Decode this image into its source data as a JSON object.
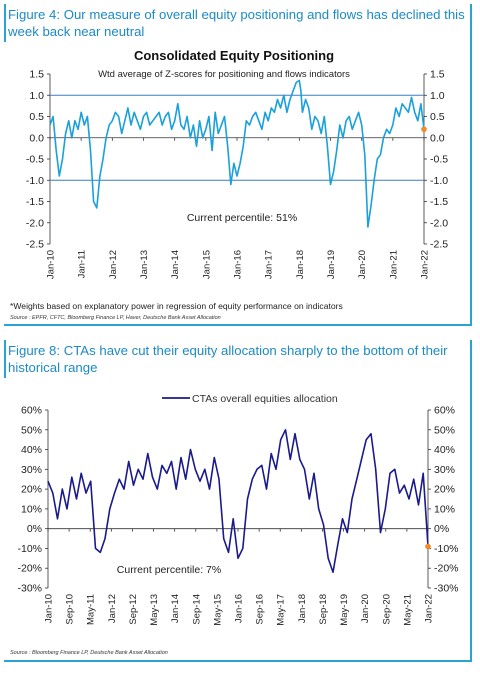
{
  "figure1": {
    "title": "Figure 4: Our measure of overall equity positioning and flows has declined this week back near neutral",
    "chart_title": "Consolidated Equity Positioning",
    "chart_subtitle": "Wtd average of Z-scores for positioning and flows indicators",
    "annotation": "Current percentile: 51%",
    "footnote": "*Weights based on explanatory power in regression of equity performance on indicators",
    "source": "Source : EPFR, CFTC, Bloomberg Finance LP, Haver, Deutsche Bank Asset Allocation"
  },
  "figure2": {
    "title": "Figure 8: CTAs have cut their equity allocation sharply to the bottom of their historical range",
    "legend": "CTAs overall equities allocation",
    "annotation": "Current percentile: 7%",
    "source": "Source : Bloomberg Finance LP, Deutsche Bank Asset Allocation"
  },
  "colors": {
    "series1": "#1aa0dc",
    "series2": "#1a1a8c",
    "marker": "#f08a2a",
    "reference": "#3a7fc0",
    "title": "#1c8ac4"
  },
  "chart_data": [
    {
      "type": "line",
      "title": "Consolidated Equity Positioning",
      "subtitle": "Wtd average of Z-scores for positioning and flows indicators",
      "x_ticks": [
        "Jan-10",
        "Jan-11",
        "Jan-12",
        "Jan-13",
        "Jan-14",
        "Jan-15",
        "Jan-16",
        "Jan-17",
        "Jan-18",
        "Jan-19",
        "Jan-20",
        "Jan-21",
        "Jan-22"
      ],
      "y_ticks": [
        "1.5",
        "1.0",
        "0.5",
        "0.0",
        "-0.5",
        "-1.0",
        "-1.5",
        "-2.0",
        "-2.5"
      ],
      "ylim": [
        -2.5,
        1.5
      ],
      "reference_lines": [
        1.0,
        -1.0
      ],
      "series": [
        {
          "x": [
            2010.0,
            2010.1,
            2010.2,
            2010.3,
            2010.4,
            2010.5,
            2010.6,
            2010.7,
            2010.8,
            2010.9,
            2011.0,
            2011.1,
            2011.2,
            2011.3,
            2011.4,
            2011.5,
            2011.6,
            2011.7,
            2011.8,
            2011.9,
            2012.0,
            2012.1,
            2012.2,
            2012.3,
            2012.4,
            2012.5,
            2012.6,
            2012.7,
            2012.8,
            2012.9,
            2013.0,
            2013.1,
            2013.2,
            2013.3,
            2013.4,
            2013.5,
            2013.6,
            2013.7,
            2013.8,
            2013.9,
            2014.0,
            2014.1,
            2014.2,
            2014.3,
            2014.4,
            2014.5,
            2014.6,
            2014.7,
            2014.8,
            2014.9,
            2015.0,
            2015.1,
            2015.2,
            2015.3,
            2015.4,
            2015.5,
            2015.6,
            2015.7,
            2015.8,
            2015.9,
            2016.0,
            2016.1,
            2016.2,
            2016.3,
            2016.4,
            2016.5,
            2016.6,
            2016.7,
            2016.8,
            2016.9,
            2017.0,
            2017.1,
            2017.2,
            2017.3,
            2017.4,
            2017.5,
            2017.6,
            2017.7,
            2017.8,
            2017.9,
            2018.0,
            2018.05,
            2018.1,
            2018.2,
            2018.3,
            2018.4,
            2018.5,
            2018.6,
            2018.7,
            2018.8,
            2018.9,
            2019.0,
            2019.1,
            2019.2,
            2019.3,
            2019.4,
            2019.5,
            2019.6,
            2019.7,
            2019.8,
            2019.9,
            2020.0,
            2020.1,
            2020.2,
            2020.3,
            2020.4,
            2020.5,
            2020.6,
            2020.7,
            2020.8,
            2020.9,
            2021.0,
            2021.1,
            2021.2,
            2021.3,
            2021.4,
            2021.5,
            2021.6,
            2021.7,
            2021.8,
            2021.9,
            2022.0
          ],
          "values": [
            0.3,
            0.5,
            -0.3,
            -0.9,
            -0.5,
            0.1,
            0.4,
            0.0,
            0.4,
            0.2,
            0.6,
            0.3,
            0.5,
            -0.3,
            -1.5,
            -1.65,
            -0.9,
            -0.5,
            0.0,
            0.3,
            0.4,
            0.6,
            0.5,
            0.1,
            0.4,
            0.7,
            0.3,
            0.6,
            0.4,
            0.2,
            0.5,
            0.6,
            0.3,
            0.4,
            0.5,
            0.6,
            0.3,
            0.5,
            0.6,
            0.2,
            0.4,
            0.8,
            0.3,
            0.2,
            0.5,
            0.0,
            0.3,
            -0.2,
            0.4,
            0.0,
            0.2,
            0.5,
            -0.3,
            0.6,
            0.1,
            0.3,
            0.5,
            -0.2,
            -1.1,
            -0.6,
            -0.9,
            -0.6,
            -0.2,
            0.4,
            0.3,
            0.5,
            0.6,
            0.4,
            0.2,
            0.6,
            0.4,
            0.7,
            0.6,
            0.9,
            0.7,
            1.0,
            0.6,
            0.9,
            1.1,
            1.3,
            1.35,
            1.1,
            0.6,
            0.9,
            0.7,
            0.2,
            0.5,
            0.4,
            0.1,
            0.5,
            -0.2,
            -1.1,
            -0.8,
            -0.3,
            0.3,
            0.0,
            0.4,
            0.5,
            0.2,
            0.4,
            0.6,
            0.3,
            -0.4,
            -2.1,
            -1.6,
            -1.0,
            -0.5,
            -0.4,
            0.0,
            0.2,
            0.1,
            0.3,
            0.7,
            0.5,
            0.8,
            0.7,
            0.6,
            0.95,
            0.6,
            0.4,
            0.8,
            0.2
          ]
        }
      ],
      "last_point": {
        "x": 2022.0,
        "y": 0.2
      }
    },
    {
      "type": "line",
      "x_ticks": [
        "Jan-10",
        "Sep-10",
        "May-11",
        "Jan-12",
        "Sep-12",
        "May-13",
        "Jan-14",
        "Sep-14",
        "May-15",
        "Jan-16",
        "Sep-16",
        "May-17",
        "Jan-18",
        "Sep-18",
        "May-19",
        "Jan-20",
        "Sep-20",
        "May-21",
        "Jan-22"
      ],
      "y_ticks": [
        "60%",
        "50%",
        "40%",
        "30%",
        "20%",
        "10%",
        "0%",
        "-10%",
        "-20%",
        "-30%"
      ],
      "ylim": [
        -30,
        60
      ],
      "series": [
        {
          "name": "CTAs overall equities allocation",
          "x": [
            2010.0,
            2010.15,
            2010.3,
            2010.45,
            2010.6,
            2010.75,
            2010.9,
            2011.05,
            2011.2,
            2011.35,
            2011.5,
            2011.65,
            2011.8,
            2011.95,
            2012.1,
            2012.25,
            2012.4,
            2012.55,
            2012.7,
            2012.85,
            2013.0,
            2013.15,
            2013.3,
            2013.45,
            2013.6,
            2013.75,
            2013.9,
            2014.05,
            2014.2,
            2014.35,
            2014.5,
            2014.65,
            2014.8,
            2014.95,
            2015.1,
            2015.25,
            2015.4,
            2015.55,
            2015.7,
            2015.85,
            2016.0,
            2016.15,
            2016.3,
            2016.45,
            2016.6,
            2016.75,
            2016.9,
            2017.05,
            2017.2,
            2017.35,
            2017.5,
            2017.65,
            2017.8,
            2017.95,
            2018.1,
            2018.25,
            2018.4,
            2018.55,
            2018.7,
            2018.85,
            2019.0,
            2019.15,
            2019.3,
            2019.45,
            2019.6,
            2019.75,
            2019.9,
            2020.05,
            2020.2,
            2020.35,
            2020.5,
            2020.65,
            2020.8,
            2020.95,
            2021.1,
            2021.25,
            2021.4,
            2021.55,
            2021.7,
            2021.85,
            2022.0
          ],
          "values": [
            24,
            18,
            5,
            20,
            10,
            26,
            15,
            28,
            18,
            24,
            -10,
            -12,
            -5,
            10,
            18,
            25,
            20,
            34,
            22,
            30,
            25,
            38,
            26,
            20,
            32,
            28,
            34,
            20,
            36,
            25,
            40,
            30,
            24,
            30,
            20,
            36,
            25,
            -5,
            -12,
            5,
            -15,
            -10,
            15,
            25,
            30,
            32,
            20,
            38,
            30,
            45,
            50,
            35,
            48,
            35,
            30,
            15,
            28,
            10,
            2,
            -15,
            -22,
            -8,
            5,
            -2,
            15,
            25,
            35,
            45,
            48,
            30,
            -2,
            10,
            28,
            30,
            18,
            22,
            15,
            25,
            12,
            28,
            -9
          ]
        }
      ],
      "last_point": {
        "x": 2022.0,
        "y": -9
      }
    }
  ]
}
